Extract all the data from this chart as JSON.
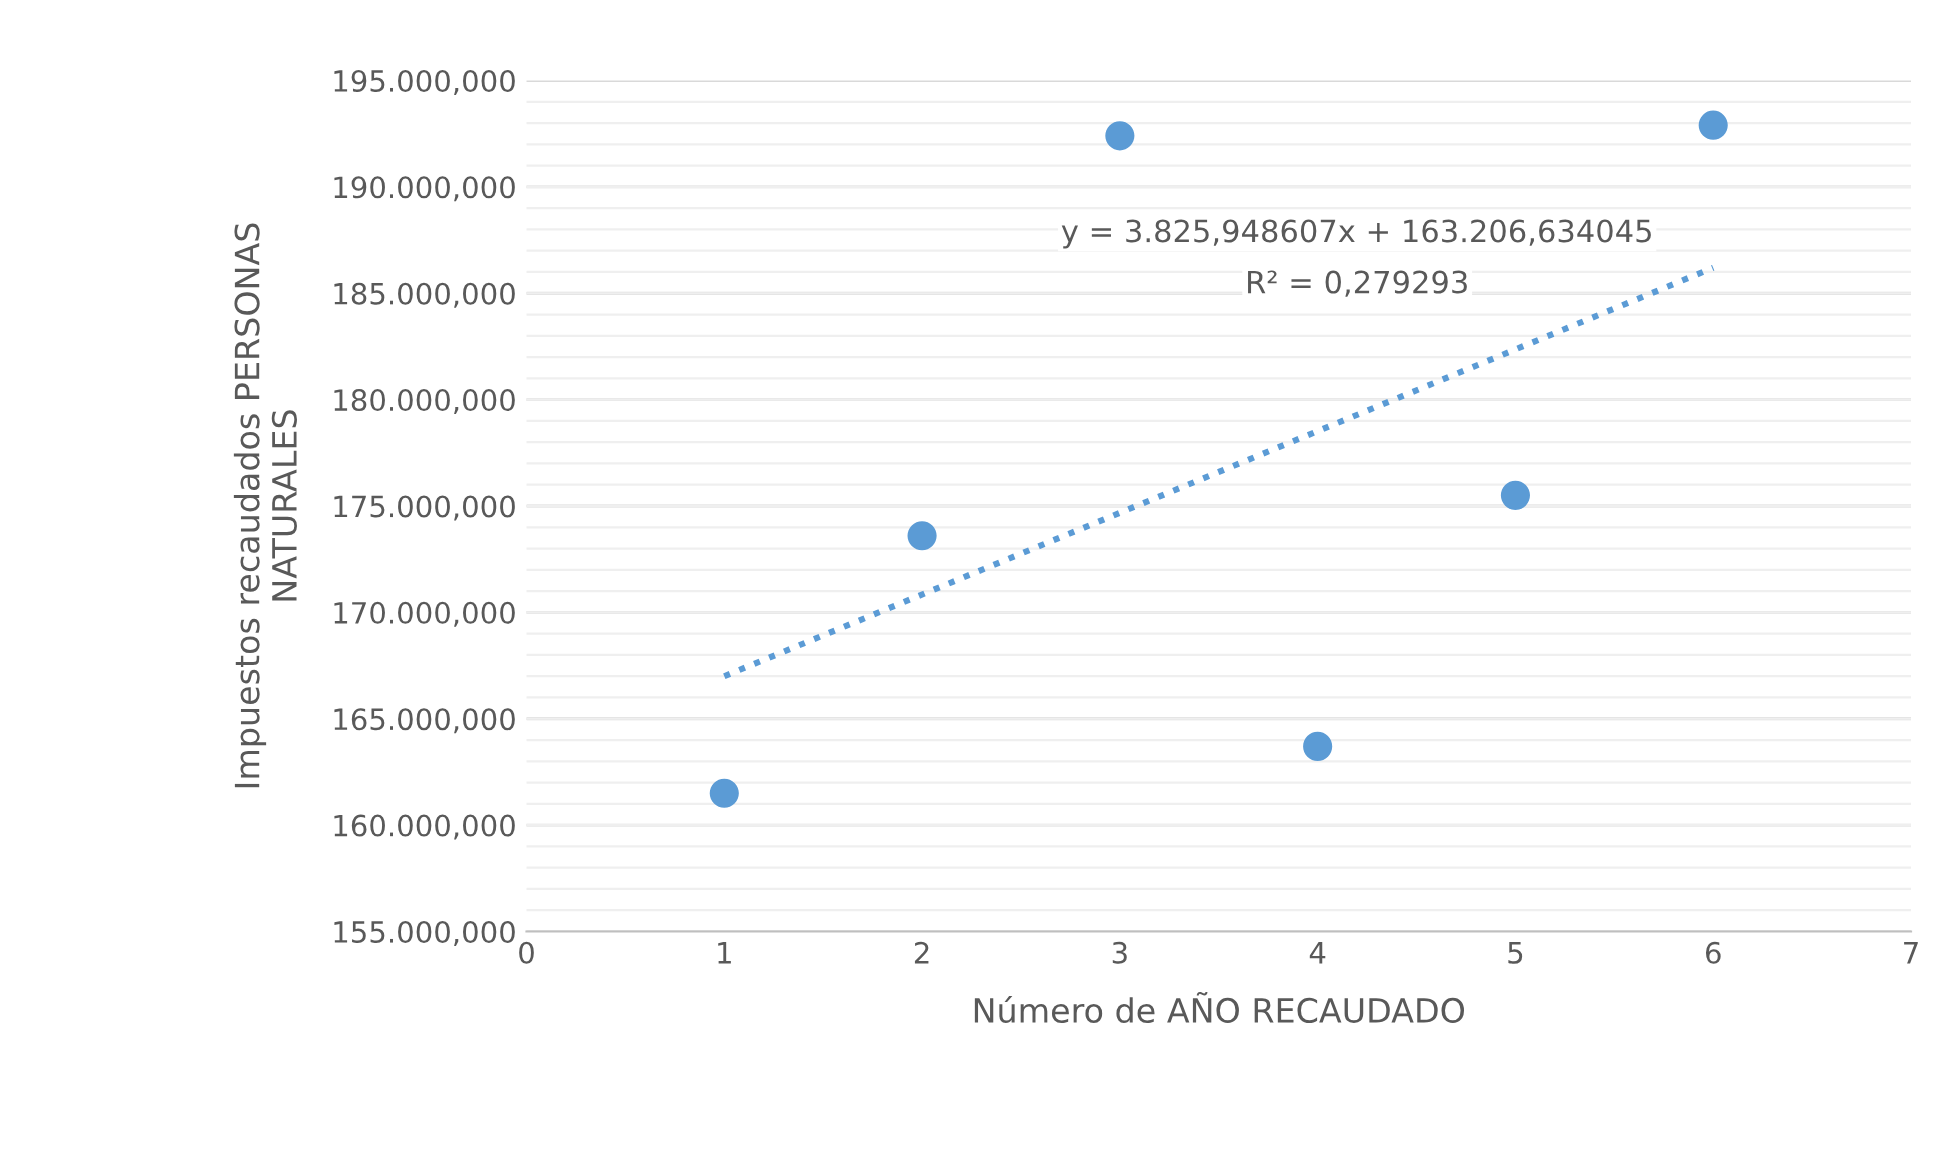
{
  "chart_data": {
    "type": "scatter",
    "xlabel": "Número de AÑO RECAUDADO",
    "ylabel": "Impuestos recaudados PERSONAS\nNATURALES",
    "series": [
      {
        "color": "#5b9bd5",
        "marker": "circle",
        "x": [
          1,
          2,
          3,
          4,
          5,
          6
        ],
        "values": [
          161500,
          173600,
          192400,
          163700,
          175500,
          192900
        ]
      },
      {
        "type": "line",
        "color": "#5b9bd5",
        "line_style": "dotted",
        "marker": "none",
        "x": [
          1,
          6
        ],
        "values": [
          167000,
          186200
        ]
      }
    ],
    "annotations": [
      "y = 3.825,948607x + 163.206,634045",
      "R² = 0,279293"
    ],
    "xlim": [
      0,
      7
    ],
    "xticks": [
      0,
      1,
      2,
      3,
      4,
      5,
      6,
      7
    ],
    "ylim": [
      155000,
      195000
    ],
    "yticks": [
      {
        "value": 155000,
        "label": "155.000,000"
      },
      {
        "value": 160000,
        "label": "160.000,000"
      },
      {
        "value": 165000,
        "label": "165.000,000"
      },
      {
        "value": 170000,
        "label": "170.000,000"
      },
      {
        "value": 175000,
        "label": "175.000,000"
      },
      {
        "value": 180000,
        "label": "180.000,000"
      },
      {
        "value": 185000,
        "label": "185.000,000"
      },
      {
        "value": 190000,
        "label": "190.000,000"
      },
      {
        "value": 195000,
        "label": "195.000,000"
      }
    ],
    "grid": "y"
  }
}
